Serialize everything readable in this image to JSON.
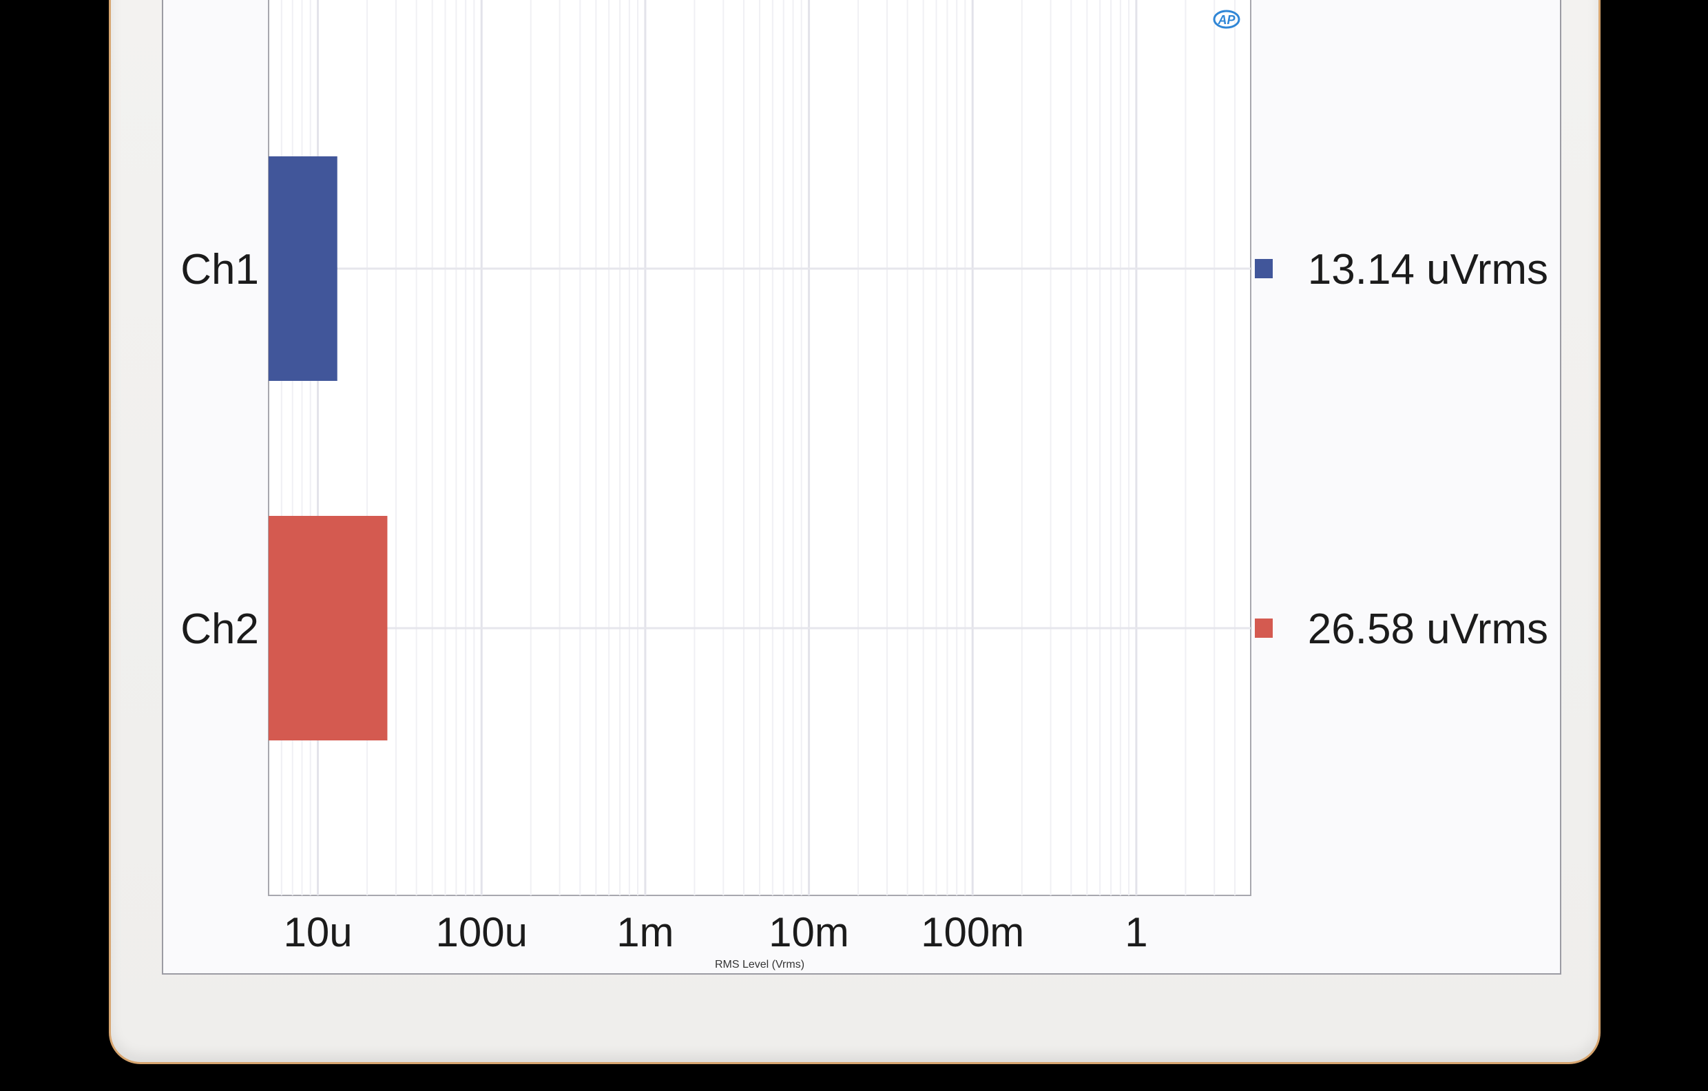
{
  "chart_data": {
    "type": "bar",
    "orientation": "horizontal",
    "categories": [
      "Ch1",
      "Ch2"
    ],
    "values": [
      1.314e-05,
      2.658e-05
    ],
    "value_labels": [
      "13.14  uVrms",
      "26.58  uVrms"
    ],
    "colors": [
      "#41569a",
      "#d45a50"
    ],
    "x_scale": "log",
    "xlim": [
      5e-06,
      5
    ],
    "x_ticks": [
      1e-05,
      0.0001,
      0.001,
      0.01,
      0.1,
      1
    ],
    "x_tick_labels": [
      "10u",
      "100u",
      "1m",
      "10m",
      "100m",
      "1"
    ],
    "xlabel": "RMS Level (Vrms)",
    "ylabel": "",
    "title": "",
    "grid": true,
    "legend": "right"
  },
  "logo": {
    "text": "AP",
    "color": "#2f86d6"
  }
}
